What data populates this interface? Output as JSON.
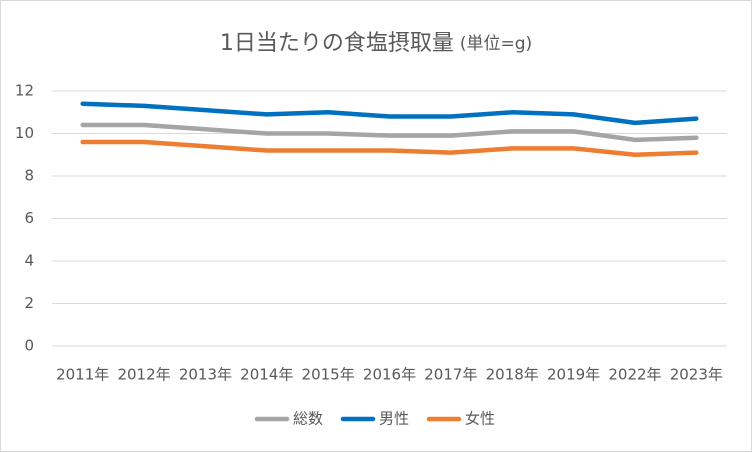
{
  "chart_data": {
    "type": "line",
    "title": "1日当たりの食塩摂取量",
    "subtitle": "(単位=g)",
    "categories": [
      "2011年",
      "2012年",
      "2013年",
      "2014年",
      "2015年",
      "2016年",
      "2017年",
      "2018年",
      "2019年",
      "2022年",
      "2023年"
    ],
    "series": [
      {
        "name": "総数",
        "color": "#a5a5a5",
        "values": [
          10.4,
          10.4,
          10.2,
          10.0,
          10.0,
          9.9,
          9.9,
          10.1,
          10.1,
          9.7,
          9.8
        ]
      },
      {
        "name": "男性",
        "color": "#0070c0",
        "values": [
          11.4,
          11.3,
          11.1,
          10.9,
          11.0,
          10.8,
          10.8,
          11.0,
          10.9,
          10.5,
          10.7
        ]
      },
      {
        "name": "女性",
        "color": "#ed7d31",
        "values": [
          9.6,
          9.6,
          9.4,
          9.2,
          9.2,
          9.2,
          9.1,
          9.3,
          9.3,
          9.0,
          9.1
        ]
      }
    ],
    "ylim": [
      0,
      12
    ],
    "yticks": [
      0,
      2,
      4,
      6,
      8,
      10,
      12
    ],
    "grid": true,
    "legend": "bottom"
  }
}
